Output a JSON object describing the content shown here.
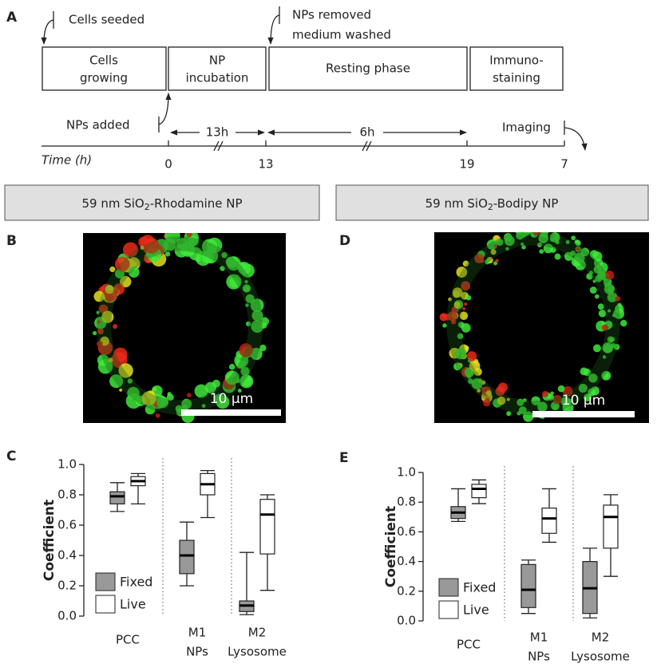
{
  "panel_labels": [
    "A",
    "B",
    "C",
    "D",
    "E"
  ],
  "timeline": {
    "phases": [
      [
        "Cells",
        "growing"
      ],
      [
        "NP",
        "incubation"
      ],
      [
        "Resting phase"
      ],
      [
        "Immuno-",
        "staining"
      ]
    ],
    "cells_seeded": "Cells seeded",
    "nps_removed": [
      "NPs removed",
      "medium washed"
    ],
    "nps_added": "NPs added",
    "imaging": "Imaging",
    "durations": [
      "13h",
      "6h"
    ],
    "axis_label": "Time (h)",
    "ticks": [
      "0",
      "13",
      "19",
      "7"
    ]
  },
  "banners": [
    [
      "59 nm SiO",
      "2",
      "-Rhodamine NP"
    ],
    [
      "59 nm SiO",
      "2",
      "-Bodipy NP"
    ]
  ],
  "scale_bars": [
    "10 µm",
    "10 µm"
  ],
  "chart_data": [
    {
      "type": "box",
      "ylabel": "Coefficient",
      "ylim": [
        0,
        1
      ],
      "yticks": [
        {
          "value": 0,
          "label": "0.0"
        },
        0.2,
        0.4,
        0.6,
        0.8,
        {
          "value": 1,
          "label": "1.0"
        }
      ],
      "categories": [
        [
          "PCC"
        ],
        [
          "M1",
          "NPs"
        ],
        [
          "M2",
          "Lysosome"
        ]
      ],
      "series": [
        {
          "name": "Fixed",
          "color": "#999999",
          "whislo": [
            0.69,
            0.2,
            0.01
          ],
          "q1": [
            0.74,
            0.28,
            0.03
          ],
          "med": [
            0.79,
            0.4,
            0.07
          ],
          "q3": [
            0.82,
            0.5,
            0.1
          ],
          "whishi": [
            0.88,
            0.62,
            0.42
          ]
        },
        {
          "name": "Live",
          "color": "#ffffff",
          "whislo": [
            0.74,
            0.65,
            0.17
          ],
          "q1": [
            0.86,
            0.8,
            0.41
          ],
          "med": [
            0.89,
            0.87,
            0.67
          ],
          "q3": [
            0.92,
            0.94,
            0.77
          ],
          "whishi": [
            0.94,
            0.96,
            0.8
          ]
        }
      ]
    },
    {
      "type": "box",
      "ylabel": "Coefficient",
      "ylim": [
        0,
        1
      ],
      "yticks": [
        {
          "value": 0,
          "label": "0.0"
        },
        0.2,
        0.4,
        0.6,
        0.8,
        {
          "value": 1,
          "label": "1.0"
        }
      ],
      "categories": [
        [
          "PCC"
        ],
        [
          "M1",
          "NPs"
        ],
        [
          "M2",
          "Lysosome"
        ]
      ],
      "series": [
        {
          "name": "Fixed",
          "color": "#999999",
          "whislo": [
            0.67,
            0.05,
            0.02
          ],
          "q1": [
            0.69,
            0.09,
            0.05
          ],
          "med": [
            0.73,
            0.21,
            0.22
          ],
          "q3": [
            0.77,
            0.38,
            0.4
          ],
          "whishi": [
            0.89,
            0.41,
            0.49
          ]
        },
        {
          "name": "Live",
          "color": "#ffffff",
          "whislo": [
            0.79,
            0.53,
            0.3
          ],
          "q1": [
            0.83,
            0.59,
            0.49
          ],
          "med": [
            0.89,
            0.69,
            0.7
          ],
          "q3": [
            0.92,
            0.76,
            0.78
          ],
          "whishi": [
            0.95,
            0.89,
            0.85
          ]
        }
      ]
    }
  ]
}
